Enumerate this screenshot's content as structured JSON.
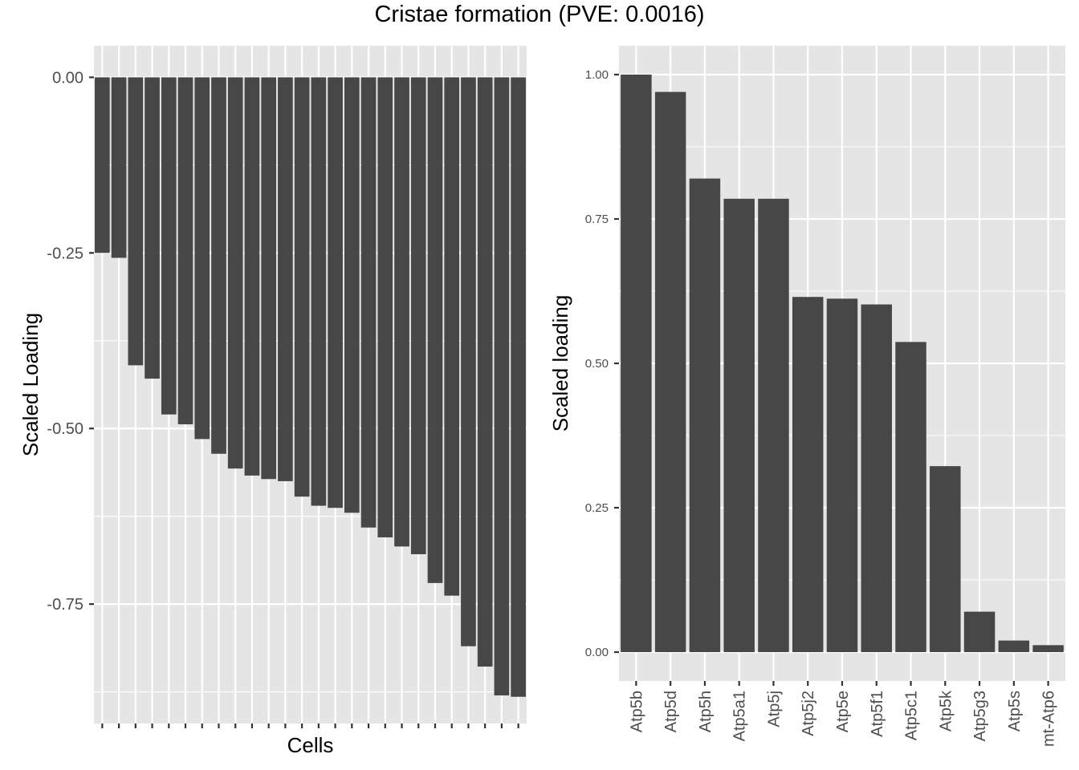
{
  "title": "Cristae formation (PVE: 0.0016)",
  "colors": {
    "panel_bg": "#e5e5e5",
    "grid": "#ffffff",
    "bar": "#474747",
    "tick": "#333333"
  },
  "chart_data": [
    {
      "type": "bar",
      "xlabel": "Cells",
      "ylabel": "Scaled Loading",
      "ylim": [
        -0.92,
        0.045
      ],
      "y_ticks": [
        0.0,
        -0.25,
        -0.5,
        -0.75
      ],
      "y_tick_labels": [
        "0.00",
        "-0.25",
        "-0.50",
        "-0.75"
      ],
      "grid": true,
      "x_tick_labels_shown": false,
      "values": [
        -0.25,
        -0.257,
        -0.41,
        -0.429,
        -0.48,
        -0.494,
        -0.515,
        -0.536,
        -0.557,
        -0.567,
        -0.572,
        -0.575,
        -0.597,
        -0.61,
        -0.613,
        -0.62,
        -0.641,
        -0.655,
        -0.668,
        -0.679,
        -0.72,
        -0.738,
        -0.81,
        -0.839,
        -0.88,
        -0.882
      ]
    },
    {
      "type": "bar",
      "xlabel": "",
      "ylabel": "Scaled loading",
      "ylim": [
        -0.05,
        1.05
      ],
      "y_ticks": [
        0.0,
        0.25,
        0.5,
        0.75,
        1.0
      ],
      "y_tick_labels": [
        "0.00",
        "0.25",
        "0.50",
        "0.75",
        "1.00"
      ],
      "grid": true,
      "categories": [
        "Atp5b",
        "Atp5d",
        "Atp5h",
        "Atp5a1",
        "Atp5j",
        "Atp5j2",
        "Atp5e",
        "Atp5f1",
        "Atp5c1",
        "Atp5k",
        "Atp5g3",
        "Atp5s",
        "mt-Atp6"
      ],
      "values": [
        1.0,
        0.97,
        0.82,
        0.785,
        0.785,
        0.615,
        0.612,
        0.602,
        0.537,
        0.322,
        0.07,
        0.02,
        0.012
      ]
    }
  ]
}
